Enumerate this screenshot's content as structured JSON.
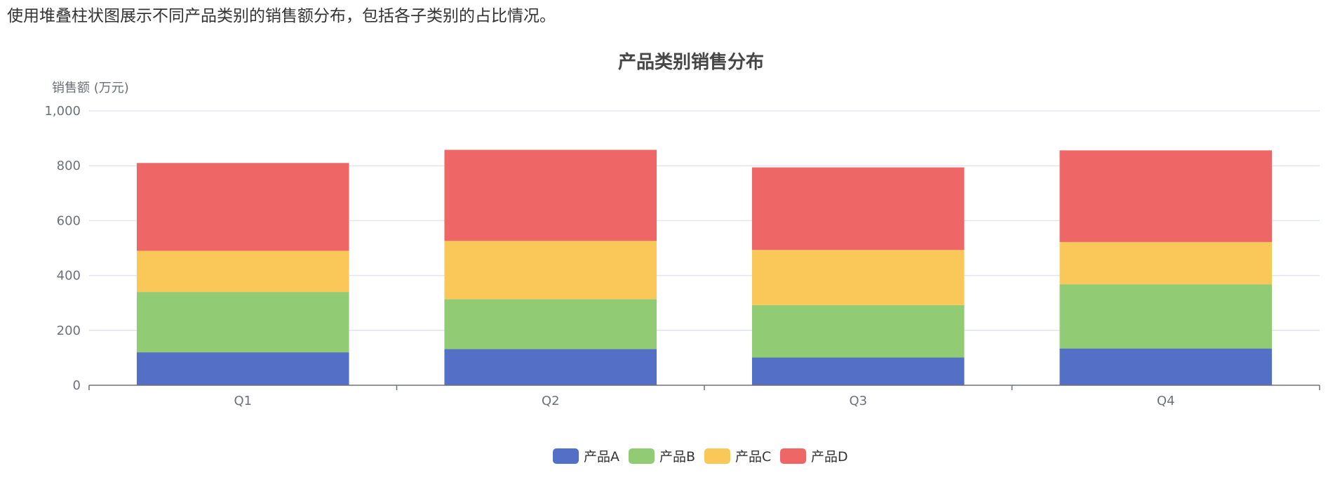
{
  "description": "使用堆叠柱状图展示不同产品类别的销售额分布，包括各子类别的占比情况。",
  "chart_data": {
    "type": "bar",
    "stacked": true,
    "title": "产品类别销售分布",
    "xlabel": "",
    "ylabel": "销售额 (万元)",
    "ylim": [
      0,
      1000
    ],
    "yticks": [
      0,
      200,
      400,
      600,
      800,
      1000
    ],
    "ytick_labels": [
      "0",
      "200",
      "400",
      "600",
      "800",
      "1,000"
    ],
    "grid": true,
    "legend_position": "bottom-center",
    "categories": [
      "Q1",
      "Q2",
      "Q3",
      "Q4"
    ],
    "series": [
      {
        "name": "产品A",
        "color": "#5470c6",
        "values": [
          120,
          132,
          101,
          134
        ]
      },
      {
        "name": "产品B",
        "color": "#91cc75",
        "values": [
          220,
          182,
          191,
          234
        ]
      },
      {
        "name": "产品C",
        "color": "#fac858",
        "values": [
          150,
          212,
          201,
          154
        ]
      },
      {
        "name": "产品D",
        "color": "#ee6666",
        "values": [
          320,
          332,
          301,
          334
        ]
      }
    ]
  }
}
